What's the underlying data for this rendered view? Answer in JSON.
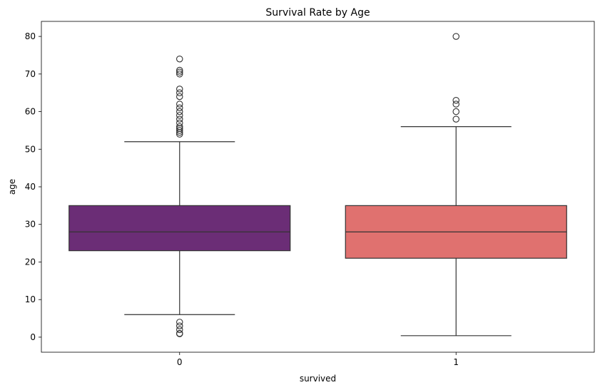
{
  "chart_data": {
    "type": "box",
    "title": "Survival Rate by Age",
    "xlabel": "survived",
    "ylabel": "age",
    "ylim": [
      -4,
      84
    ],
    "yticks": [
      0,
      10,
      20,
      30,
      40,
      50,
      60,
      70,
      80
    ],
    "grid": false,
    "categories": [
      "0",
      "1"
    ],
    "series": [
      {
        "category": "0",
        "color": "#6b2d76",
        "whisker_low": 6,
        "q1": 23,
        "median": 28,
        "q3": 35,
        "whisker_high": 52,
        "outliers": [
          74,
          71,
          70.5,
          70,
          66,
          65,
          64,
          62,
          61,
          60,
          59,
          58,
          57,
          56,
          55.5,
          55,
          54.5,
          54,
          4,
          3,
          2,
          1,
          0.9
        ]
      },
      {
        "category": "1",
        "color": "#e0716f",
        "whisker_low": 0.4,
        "q1": 21,
        "median": 28,
        "q3": 35,
        "whisker_high": 56,
        "outliers": [
          80,
          63,
          62,
          60,
          58
        ]
      }
    ]
  }
}
